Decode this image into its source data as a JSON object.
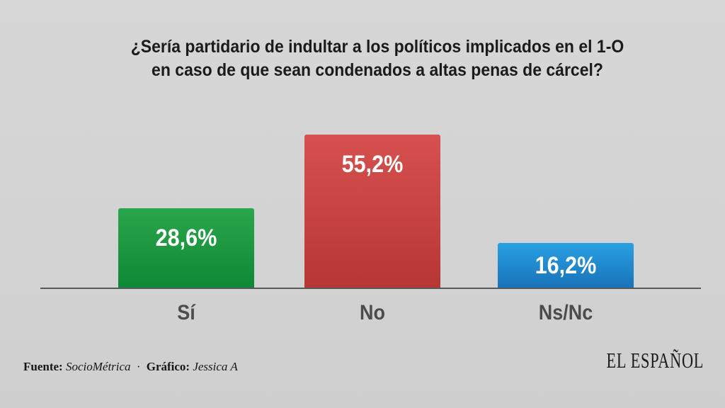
{
  "page": {
    "background": "#d3d3d3"
  },
  "chart_data": {
    "type": "bar",
    "title_line1": "¿Sería partidario de indultar a los políticos implicados en el 1-O",
    "title_line2": "en caso de que sean condenados a altas penas de cárcel?",
    "categories": [
      "Sí",
      "No",
      "Ns/Nc"
    ],
    "values": [
      28.6,
      55.2,
      16.2
    ],
    "value_labels": [
      "28,6%",
      "55,2%",
      "16,2%"
    ],
    "bar_colors": [
      {
        "top": "#2aa64c",
        "bottom": "#0f8835"
      },
      {
        "top": "#d65150",
        "bottom": "#b73734"
      },
      {
        "top": "#2aa0e4",
        "bottom": "#1973b8"
      }
    ],
    "ylim": [
      0,
      60
    ],
    "grid": false,
    "legend": false,
    "axis_line_color": "#58595b",
    "value_label_color": "#ffffff",
    "category_label_color": "#4c4c4c",
    "title_color": "#1b1b1b"
  },
  "footer": {
    "source_label": "Fuente:",
    "source_value": "SocioMétrica",
    "separator": "·",
    "credit_label": "Gráfico:",
    "credit_value": "Jessica A"
  },
  "branding": {
    "logo_text": "EL ESPAÑOL"
  }
}
